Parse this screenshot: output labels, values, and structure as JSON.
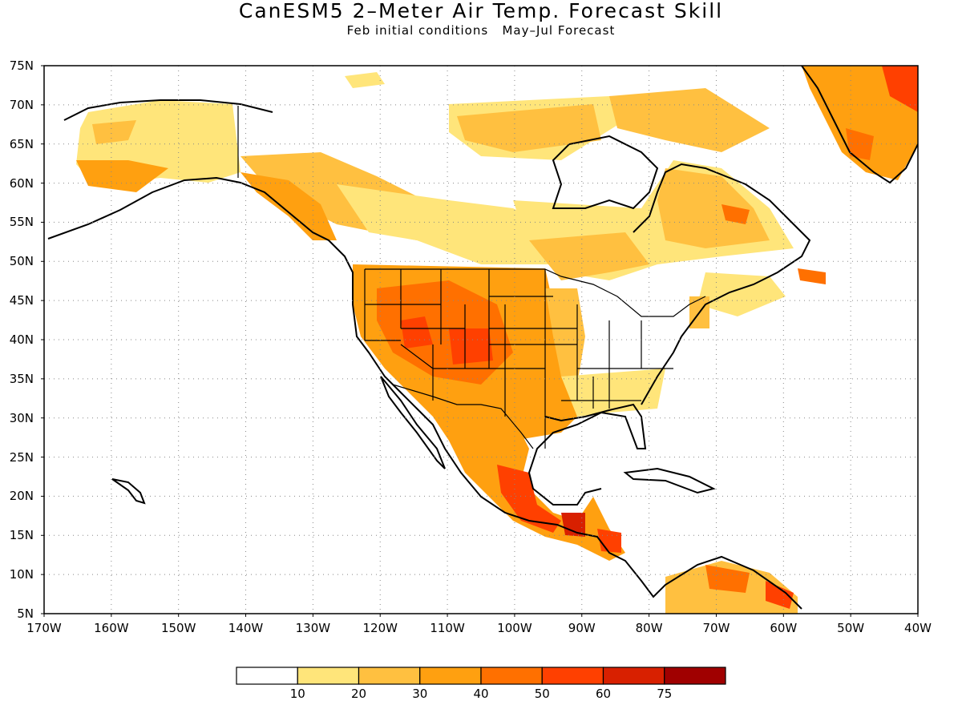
{
  "title": "CanESM5 2–Meter Air Temp. Forecast Skill",
  "subtitle": "Feb initial conditions   May–Jul Forecast",
  "lat_labels": [
    "75N",
    "70N",
    "65N",
    "60N",
    "55N",
    "50N",
    "45N",
    "40N",
    "35N",
    "30N",
    "25N",
    "20N",
    "15N",
    "10N",
    "5N"
  ],
  "lon_labels": [
    "170W",
    "160W",
    "150W",
    "140W",
    "130W",
    "120W",
    "110W",
    "100W",
    "90W",
    "80W",
    "70W",
    "60W",
    "50W",
    "40W"
  ],
  "colorbar": {
    "colors": [
      "#ffffff",
      "#ffe57a",
      "#ffc040",
      "#ffa010",
      "#ff7000",
      "#ff4000",
      "#d82000",
      "#a00000"
    ],
    "labels": [
      "10",
      "20",
      "30",
      "40",
      "50",
      "60",
      "75"
    ]
  },
  "grid": "dotted",
  "map_extent": {
    "lon": [
      -170,
      -40
    ],
    "lat": [
      5,
      75
    ]
  }
}
